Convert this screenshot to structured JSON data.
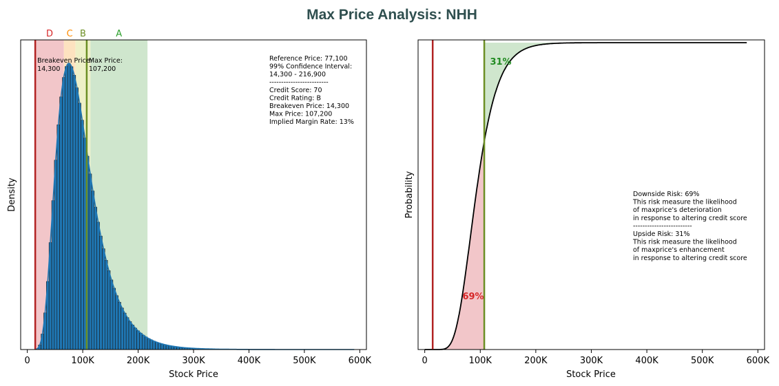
{
  "title": "Max Price Analysis: NHH",
  "colors": {
    "title": "#2f4f4f",
    "bar": "#1f77b4",
    "kde": "#1f77b4",
    "breakeven_line": "#b22222",
    "maxprice_line": "#6b8e23",
    "zone_red": "#f2c6c9",
    "zone_orange": "#fde2c0",
    "zone_yellow": "#eef0c7",
    "zone_green": "#cfe6cd",
    "grade_D": "#d62728",
    "grade_C": "#ff8c00",
    "grade_B": "#6b8e23",
    "grade_A": "#2ca02c",
    "cdf_line": "#000000",
    "downside_text": "#d62728",
    "upside_text": "#228b22"
  },
  "chart_data": [
    {
      "type": "bar",
      "subtype": "histogram-with-kde",
      "xlabel": "Stock Price",
      "ylabel": "Density",
      "xlim": [
        -12000,
        612000
      ],
      "xticks": [
        0,
        100000,
        200000,
        300000,
        400000,
        500000,
        600000
      ],
      "xtick_labels": [
        "0",
        "100K",
        "200K",
        "300K",
        "400K",
        "500K",
        "600K"
      ],
      "yticks_shown": false,
      "grid": false,
      "bin_width": 4800,
      "mode": 75000,
      "peak": 100,
      "zones": [
        {
          "grade": "D",
          "from": 14300,
          "to": 66000
        },
        {
          "grade": "C",
          "from": 66000,
          "to": 87000
        },
        {
          "grade": "B",
          "from": 87000,
          "to": 114000
        },
        {
          "grade": "A",
          "from": 114000,
          "to": 216900
        }
      ],
      "vlines": [
        {
          "value": 14300,
          "label_line1": "Breakeven Price:",
          "label_line2": "14,300"
        },
        {
          "value": 107200,
          "label_line1": "Max Price:",
          "label_line2": "107,200"
        }
      ],
      "info_box": [
        "Reference Price: 77,100",
        "99% Confidence Interval:",
        "14,300 - 216,900",
        "-------------------------",
        "Credit Score: 70",
        "Credit Rating: B",
        "Breakeven Price: 14,300",
        "Max Price: 107,200",
        "Implied Margin Rate: 13%"
      ]
    },
    {
      "type": "line",
      "subtype": "cdf",
      "xlabel": "Stock Price",
      "ylabel": "Probability",
      "xlim": [
        -12000,
        612000
      ],
      "xticks": [
        0,
        100000,
        200000,
        300000,
        400000,
        500000,
        600000
      ],
      "xtick_labels": [
        "0",
        "100K",
        "200K",
        "300K",
        "400K",
        "500K",
        "600K"
      ],
      "yticks_shown": false,
      "grid": false,
      "x_end": 580000,
      "downside_label": "69%",
      "upside_label": "31%",
      "vlines": [
        14300,
        107200
      ],
      "info_box": [
        "Downside Risk: 69%",
        "This risk measure the likelihood",
        "of maxprice's deterioration",
        "in response to altering credit score",
        "-------------------------",
        "Upside Risk: 31%",
        "This risk measure the likelihood",
        "of maxprice's enhancement",
        "in response to altering credit score"
      ]
    }
  ]
}
